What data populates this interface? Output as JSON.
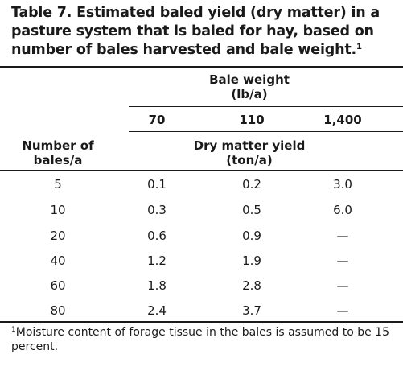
{
  "table": {
    "title": "Table 7. Estimated baled yield (dry matter) in a pasture system that is baled for hay, based on number of bales harvested and bale weight.",
    "title_note_mark": "1",
    "group_header": {
      "line1": "Bale weight",
      "line2": "(lb/a)"
    },
    "weights": [
      "70",
      "110",
      "1,400"
    ],
    "row_header": {
      "line1": "Number of",
      "line2": "bales/a"
    },
    "yield_header": {
      "line1": "Dry matter yield",
      "line2": "(ton/a)"
    },
    "rows": [
      {
        "bales": "5",
        "values": [
          "0.1",
          "0.2",
          "3.0"
        ]
      },
      {
        "bales": "10",
        "values": [
          "0.3",
          "0.5",
          "6.0"
        ]
      },
      {
        "bales": "20",
        "values": [
          "0.6",
          "0.9",
          "—"
        ]
      },
      {
        "bales": "40",
        "values": [
          "1.2",
          "1.9",
          "—"
        ]
      },
      {
        "bales": "60",
        "values": [
          "1.8",
          "2.8",
          "—"
        ]
      },
      {
        "bales": "80",
        "values": [
          "2.4",
          "3.7",
          "—"
        ]
      }
    ],
    "footnote_mark": "1",
    "footnote": "Moisture content of forage tissue in the bales is assumed to be 15 percent."
  }
}
